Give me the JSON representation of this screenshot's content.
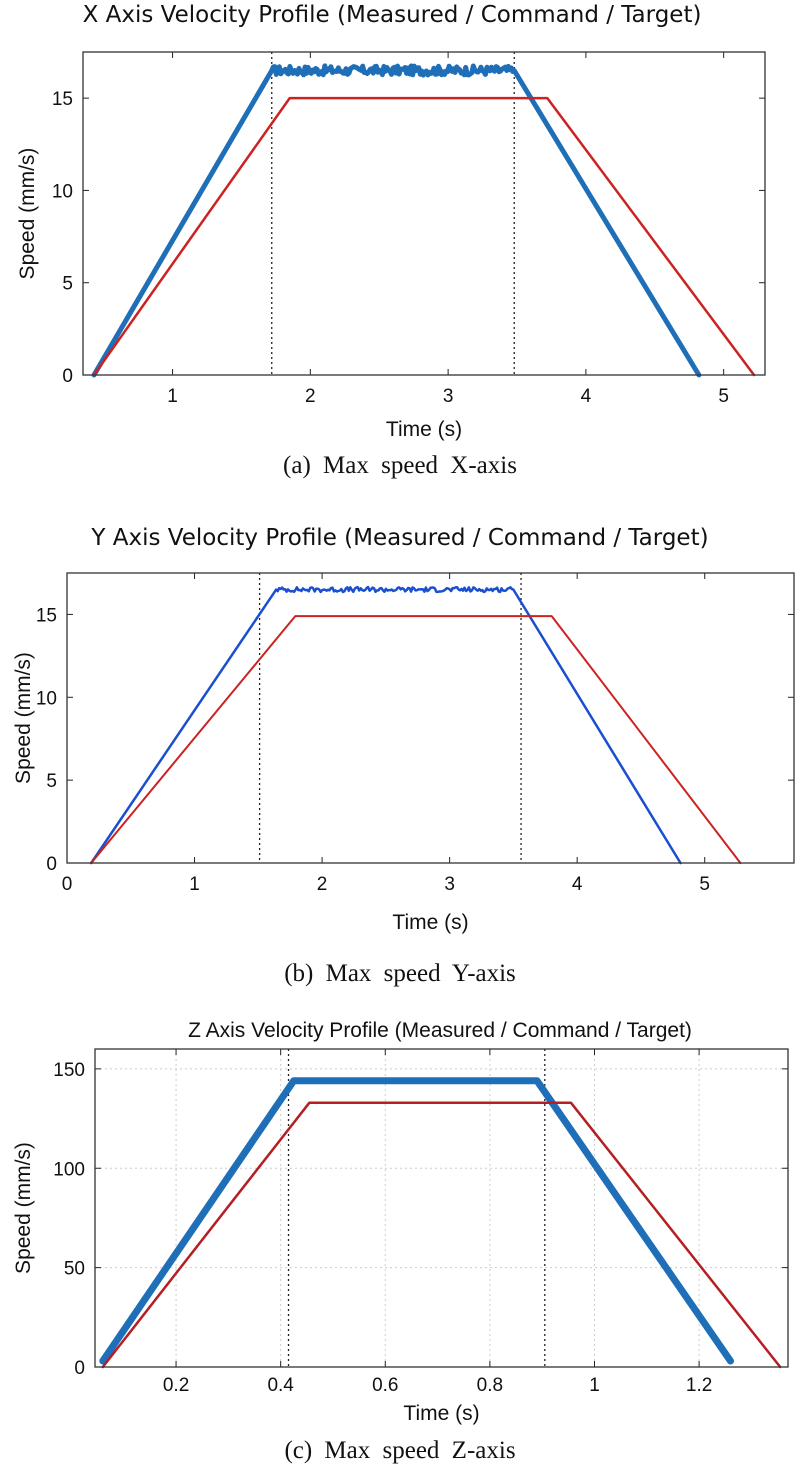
{
  "chart_data": [
    {
      "type": "line",
      "title": "X Axis Velocity Profile (Measured / Command / Target)",
      "xlabel": "Time (s)",
      "ylabel": "Speed (mm/s)",
      "xlim": [
        0.35,
        5.3
      ],
      "ylim": [
        0,
        17.5
      ],
      "xticks": [
        1,
        2,
        3,
        4,
        5
      ],
      "yticks": [
        0,
        5,
        10,
        15
      ],
      "grid": false,
      "vlines": [
        1.72,
        3.48
      ],
      "series": [
        {
          "color": "#1f6fb8",
          "width": 5,
          "noise": 0.25,
          "x": [
            0.43,
            1.72,
            3.48,
            4.82
          ],
          "y": [
            0,
            16.5,
            16.5,
            0
          ]
        },
        {
          "color": "#cc2222",
          "width": 2.5,
          "noise": 0,
          "x": [
            0.43,
            1.85,
            3.72,
            5.22
          ],
          "y": [
            0,
            15,
            15,
            0
          ]
        }
      ],
      "caption": "(a) Max speed X-axis"
    },
    {
      "type": "line",
      "title": "Y Axis Velocity Profile (Measured / Command / Target)",
      "xlabel": "Time (s)",
      "ylabel": "Speed (mm/s)",
      "xlim": [
        0,
        5.7
      ],
      "ylim": [
        0,
        17.5
      ],
      "xticks": [
        0,
        1,
        2,
        3,
        4,
        5
      ],
      "yticks": [
        0,
        5,
        10,
        15
      ],
      "grid": false,
      "vlines": [
        1.51,
        3.56
      ],
      "series": [
        {
          "color": "#1a4fd0",
          "width": 2.5,
          "noise": 0.15,
          "x": [
            0.19,
            1.64,
            3.5,
            4.81
          ],
          "y": [
            0,
            16.5,
            16.5,
            0
          ]
        },
        {
          "color": "#cc2222",
          "width": 2,
          "noise": 0,
          "x": [
            0.19,
            1.79,
            3.8,
            5.28
          ],
          "y": [
            0,
            14.9,
            14.9,
            0
          ]
        }
      ],
      "caption": "(b) Max speed Y-axis"
    },
    {
      "type": "line",
      "title": "Z Axis Velocity Profile (Measured / Command / Target)",
      "xlabel": "Time (s)",
      "ylabel": "Speed (mm/s)",
      "xlim": [
        0.045,
        1.37
      ],
      "ylim": [
        0,
        160
      ],
      "xticks": [
        0.2,
        0.4,
        0.6,
        0.8,
        1,
        1.2
      ],
      "xticklabels": [
        "0.2",
        "0.4",
        "0.6",
        "0.8",
        "1",
        "1.2"
      ],
      "yticks": [
        0,
        50,
        100,
        150
      ],
      "grid": true,
      "vlines": [
        0.415,
        0.905
      ],
      "series": [
        {
          "color": "#1f6fb8",
          "width": 7,
          "noise": 0,
          "x": [
            0.06,
            0.425,
            0.89,
            1.26
          ],
          "y": [
            3,
            144,
            144,
            3
          ]
        },
        {
          "color": "#b51f24",
          "width": 2.5,
          "noise": 0,
          "x": [
            0.06,
            0.455,
            0.955,
            1.355
          ],
          "y": [
            0,
            133,
            133,
            0
          ]
        }
      ],
      "caption": "(c) Max speed Z-axis"
    }
  ]
}
